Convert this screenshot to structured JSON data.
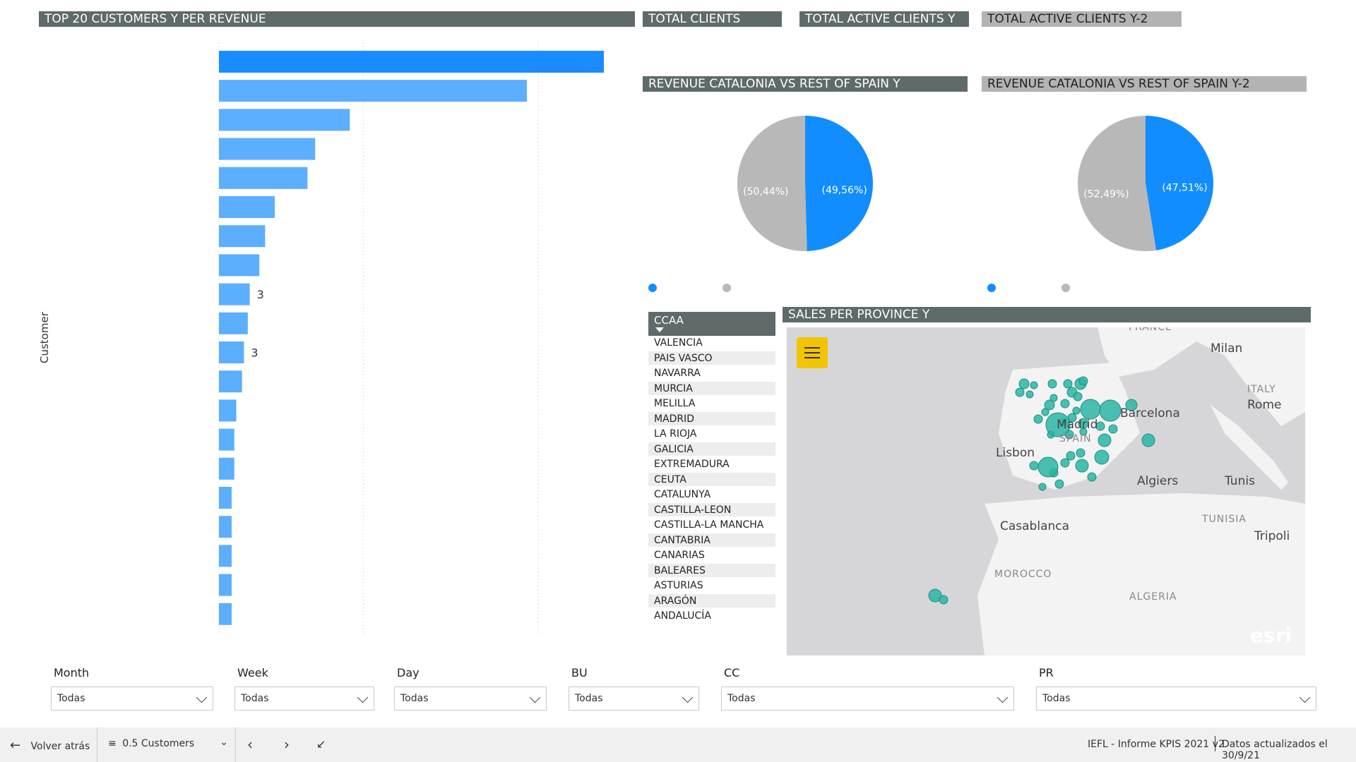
{
  "top20": {
    "title": "TOP 20 CUSTOMERS Y PER REVENUE",
    "axis_label": "Customer",
    "bar_colors": {
      "top": "#1a8cff",
      "rest": "#5caefe"
    },
    "chart_data": {
      "type": "bar",
      "orientation": "horizontal",
      "values": [
        100,
        80,
        34,
        25,
        23,
        14.5,
        12,
        10.5,
        8,
        7.5,
        6.5,
        6,
        4.5,
        4,
        4,
        3.3,
        3.3,
        3.3,
        3.3,
        3.3
      ],
      "visible_value_labels": [
        "",
        "",
        "",
        "",
        "",
        "",
        "",
        "",
        "3",
        "",
        "3",
        "",
        "",
        "",
        "",
        "",
        "",
        "",
        "",
        ""
      ]
    }
  },
  "cards": {
    "total_clients": "TOTAL CLIENTS",
    "total_active_clients_y": "TOTAL ACTIVE CLIENTS Y",
    "total_active_clients_y2": "TOTAL ACTIVE CLIENTS Y-2"
  },
  "pies": {
    "y": {
      "title": "REVENUE CATALONIA VS REST OF SPAIN Y",
      "chart_data": {
        "type": "pie",
        "slices": [
          {
            "label": "(50,44%)",
            "value": 50.44,
            "color": "#b8b8b8"
          },
          {
            "label": "(49,56%)",
            "value": 49.56,
            "color": "#118dff"
          }
        ]
      }
    },
    "y2": {
      "title": "REVENUE CATALONIA VS REST OF SPAIN Y-2",
      "chart_data": {
        "type": "pie",
        "slices": [
          {
            "label": "(52,49%)",
            "value": 52.49,
            "color": "#b8b8b8"
          },
          {
            "label": "(47,51%)",
            "value": 47.51,
            "color": "#118dff"
          }
        ]
      }
    }
  },
  "ccaa": {
    "header": "CCAA",
    "items": [
      "VALENCIA",
      "PAIS VASCO",
      "NAVARRA",
      "MURCIA",
      "MELILLA",
      "MADRID",
      "LA RIOJA",
      "GALICIA",
      "EXTREMADURA",
      "CEUTA",
      "CATALUNYA",
      "CASTILLA-LEON",
      "CASTILLA-LA MANCHA",
      "CANTABRIA",
      "CANARIAS",
      "BALEARES",
      "ASTURIAS",
      "ARAGÓN",
      "ANDALUCÍA"
    ]
  },
  "map": {
    "title": "SALES PER PROVINCE Y",
    "bubble_color": "#2ab5a5",
    "labels": {
      "france": "FRANCE",
      "milan": "Milan",
      "italy": "ITALY",
      "rome": "Rome",
      "barcelona": "Barcelona",
      "madrid": "Madrid",
      "spain": "SPAIN",
      "lisbon": "Lisbon",
      "algiers": "Algiers",
      "tunis": "Tunis",
      "tunisia": "TUNISIA",
      "tripoli": "Tripoli",
      "casablanca": "Casablanca",
      "morocco": "MOROCCO",
      "algeria": "ALGERIA",
      "esri": "esri"
    }
  },
  "filters": [
    {
      "label": "Month",
      "value": "Todas"
    },
    {
      "label": "Week",
      "value": "Todas"
    },
    {
      "label": "Day",
      "value": "Todas"
    },
    {
      "label": "BU",
      "value": "Todas"
    },
    {
      "label": "CC",
      "value": "Todas"
    },
    {
      "label": "PR",
      "value": "Todas"
    }
  ],
  "bottom_bar": {
    "back": "Volver atrás",
    "page": "0.5 Customers",
    "report": "IEFL - Informe KPIS 2021 v2",
    "updated": "Datos actualizados el 30/9/21"
  }
}
